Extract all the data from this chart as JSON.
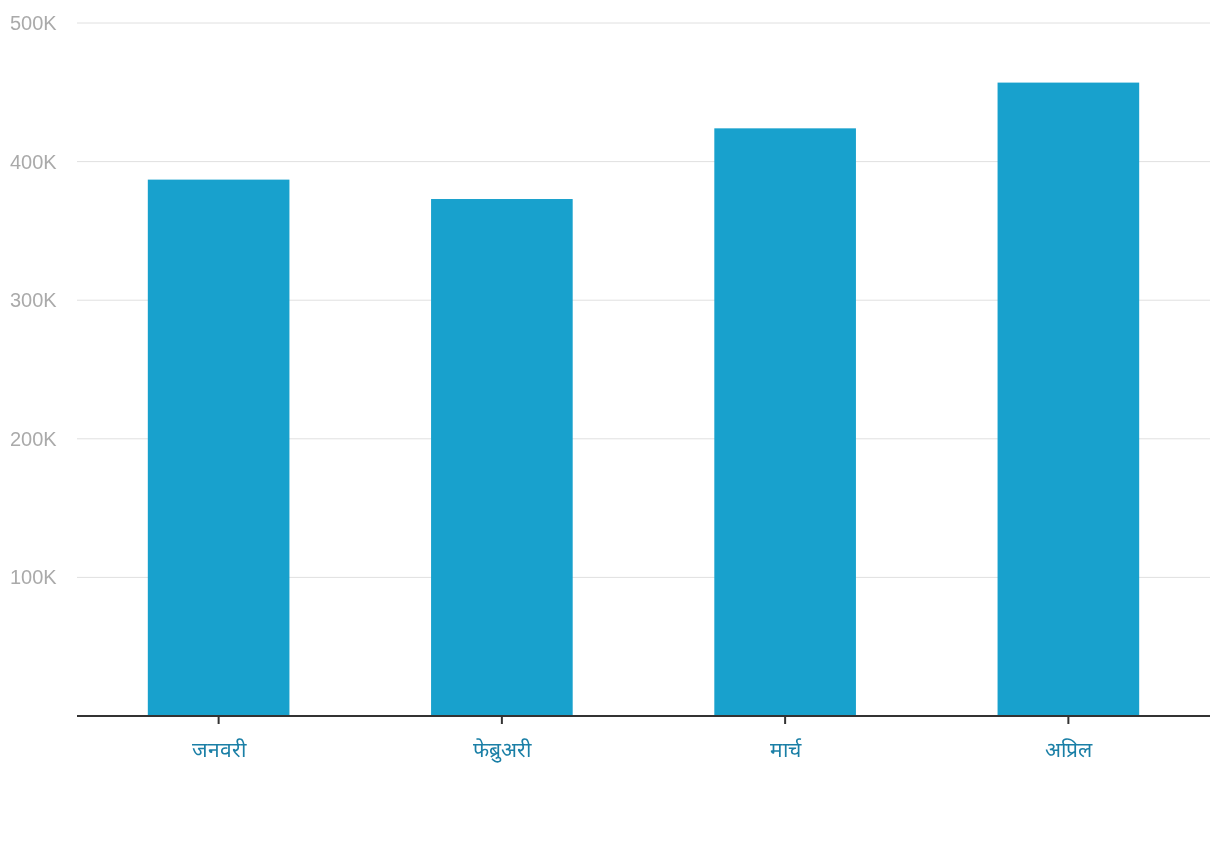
{
  "chart_data": {
    "type": "bar",
    "categories": [
      "जनवरी",
      "फेब्रुअरी",
      "मार्च",
      "अप्रिल"
    ],
    "values": [
      387000,
      373000,
      424000,
      457000
    ],
    "color": "#18a1cd",
    "ylim": [
      0,
      500000
    ],
    "yticks": [
      {
        "value": 100000,
        "label": "100K"
      },
      {
        "value": 200000,
        "label": "200K"
      },
      {
        "value": 300000,
        "label": "300K"
      },
      {
        "value": 400000,
        "label": "400K"
      },
      {
        "value": 500000,
        "label": "500K"
      }
    ],
    "grid": "y"
  }
}
